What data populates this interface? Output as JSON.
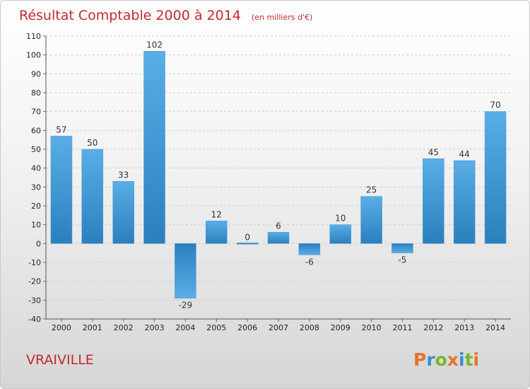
{
  "chart_data": {
    "type": "bar",
    "title": "Résultat Comptable 2000 à 2014",
    "subtitle": "(en milliers d'€)",
    "categories": [
      "2000",
      "2001",
      "2002",
      "2003",
      "2004",
      "2005",
      "2006",
      "2007",
      "2008",
      "2009",
      "2010",
      "2011",
      "2012",
      "2013",
      "2014"
    ],
    "values": [
      57,
      50,
      33,
      102,
      -29,
      12,
      0,
      6,
      -6,
      10,
      25,
      -5,
      45,
      44,
      70
    ],
    "ylim": [
      -40,
      110
    ],
    "yticks": [
      110,
      100,
      90,
      80,
      70,
      60,
      50,
      40,
      30,
      20,
      10,
      0,
      -10,
      -20,
      -30,
      -40
    ],
    "grid": true,
    "bar_color_light": "#5aaee6",
    "bar_color_dark": "#2b7fbd"
  },
  "footer": {
    "commune": "VRAIVILLE",
    "logo_text": "Proxiti",
    "logo_colors": [
      "#e8732a",
      "#3a8fd0",
      "#79b829",
      "#e8732a",
      "#3a8fd0",
      "#79b829",
      "#e8732a"
    ]
  }
}
